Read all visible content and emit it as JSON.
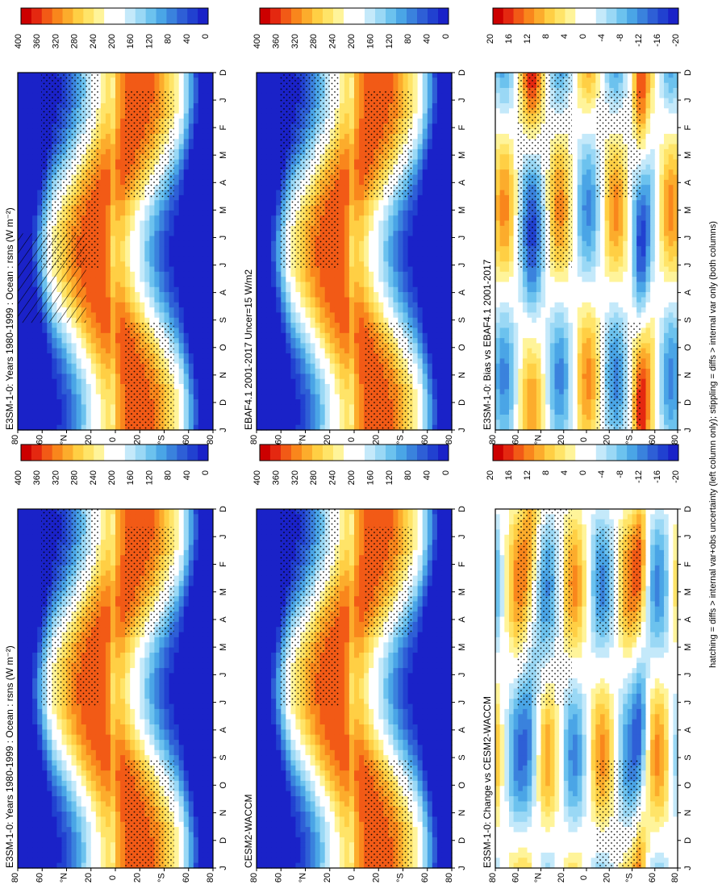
{
  "colors": {
    "absolute_scale": [
      "#cc0000",
      "#e42810",
      "#f25a16",
      "#f9861c",
      "#fcac2c",
      "#ffcf44",
      "#ffe468",
      "#fff49a",
      "#ffffff",
      "#ffffff",
      "#c4e9fa",
      "#9ad8f5",
      "#6cc2ee",
      "#4aa5e6",
      "#3a82dd",
      "#2e5fd6",
      "#2141d0",
      "#1a22c8"
    ],
    "difference_scale": [
      "#cc0000",
      "#e42810",
      "#f25a16",
      "#f9861c",
      "#fcac2c",
      "#ffcf44",
      "#ffe468",
      "#fff49a",
      "#ffffff",
      "#ffffff",
      "#c4e9fa",
      "#9ad8f5",
      "#6cc2ee",
      "#4aa5e6",
      "#3a82dd",
      "#2e5fd6",
      "#2141d0",
      "#1a22c8"
    ]
  },
  "footnote": "hatching = diffs > internal var+obs uncertainty (left column only); stippling = diffs > internal var only (both columns)",
  "axes": {
    "months": [
      "D",
      "J",
      "F",
      "M",
      "A",
      "M",
      "J",
      "J",
      "A",
      "S",
      "O",
      "N",
      "D",
      "J"
    ],
    "lat_labels": [
      "80",
      "60",
      "°N",
      "20",
      "0",
      "20",
      "°S",
      "60",
      "80"
    ]
  },
  "colorbars": {
    "absolute_ticks": [
      "400",
      "360",
      "320",
      "280",
      "240",
      "200",
      "160",
      "120",
      "80",
      "40",
      "0"
    ],
    "difference_ticks": [
      "20",
      "16",
      "12",
      "8",
      "4",
      "0",
      "-4",
      "-8",
      "-12",
      "-16",
      "-20"
    ]
  },
  "chart_data": [
    {
      "type": "heatmap",
      "panel": "top-left",
      "title": "E3SM-1-0: Years 1980-1999 : Ocean : rsns (W m⁻²)",
      "x": "month",
      "y": "latitude",
      "value_range": [
        0,
        400
      ],
      "pattern": "hatching+stippling"
    },
    {
      "type": "heatmap",
      "panel": "middle-left",
      "title": "EBAF4.1 2001-2017 Uncer=15 W/m2",
      "x": "month",
      "y": "latitude",
      "value_range": [
        0,
        400
      ],
      "pattern": "hatching+stippling"
    },
    {
      "type": "heatmap",
      "panel": "bottom-left",
      "title": "E3SM-1-0: Bias vs EBAF4.1 2001-2017",
      "x": "month",
      "y": "latitude",
      "value_range": [
        -20,
        20
      ],
      "pattern": "hatching+stippling"
    },
    {
      "type": "heatmap",
      "panel": "top-right",
      "title": "E3SM-1-0: Years 1980-1999 : Ocean : rsns (W m⁻²)",
      "x": "month",
      "y": "latitude",
      "value_range": [
        0,
        400
      ],
      "pattern": "stippling"
    },
    {
      "type": "heatmap",
      "panel": "middle-right",
      "title": "CESM2-WACCM",
      "x": "month",
      "y": "latitude",
      "value_range": [
        0,
        400
      ],
      "pattern": "stippling"
    },
    {
      "type": "heatmap",
      "panel": "bottom-right",
      "title": "E3SM-1-0: Change vs CESM2-WACCM",
      "x": "month",
      "y": "latitude",
      "value_range": [
        -20,
        20
      ],
      "pattern": "stippling"
    }
  ]
}
